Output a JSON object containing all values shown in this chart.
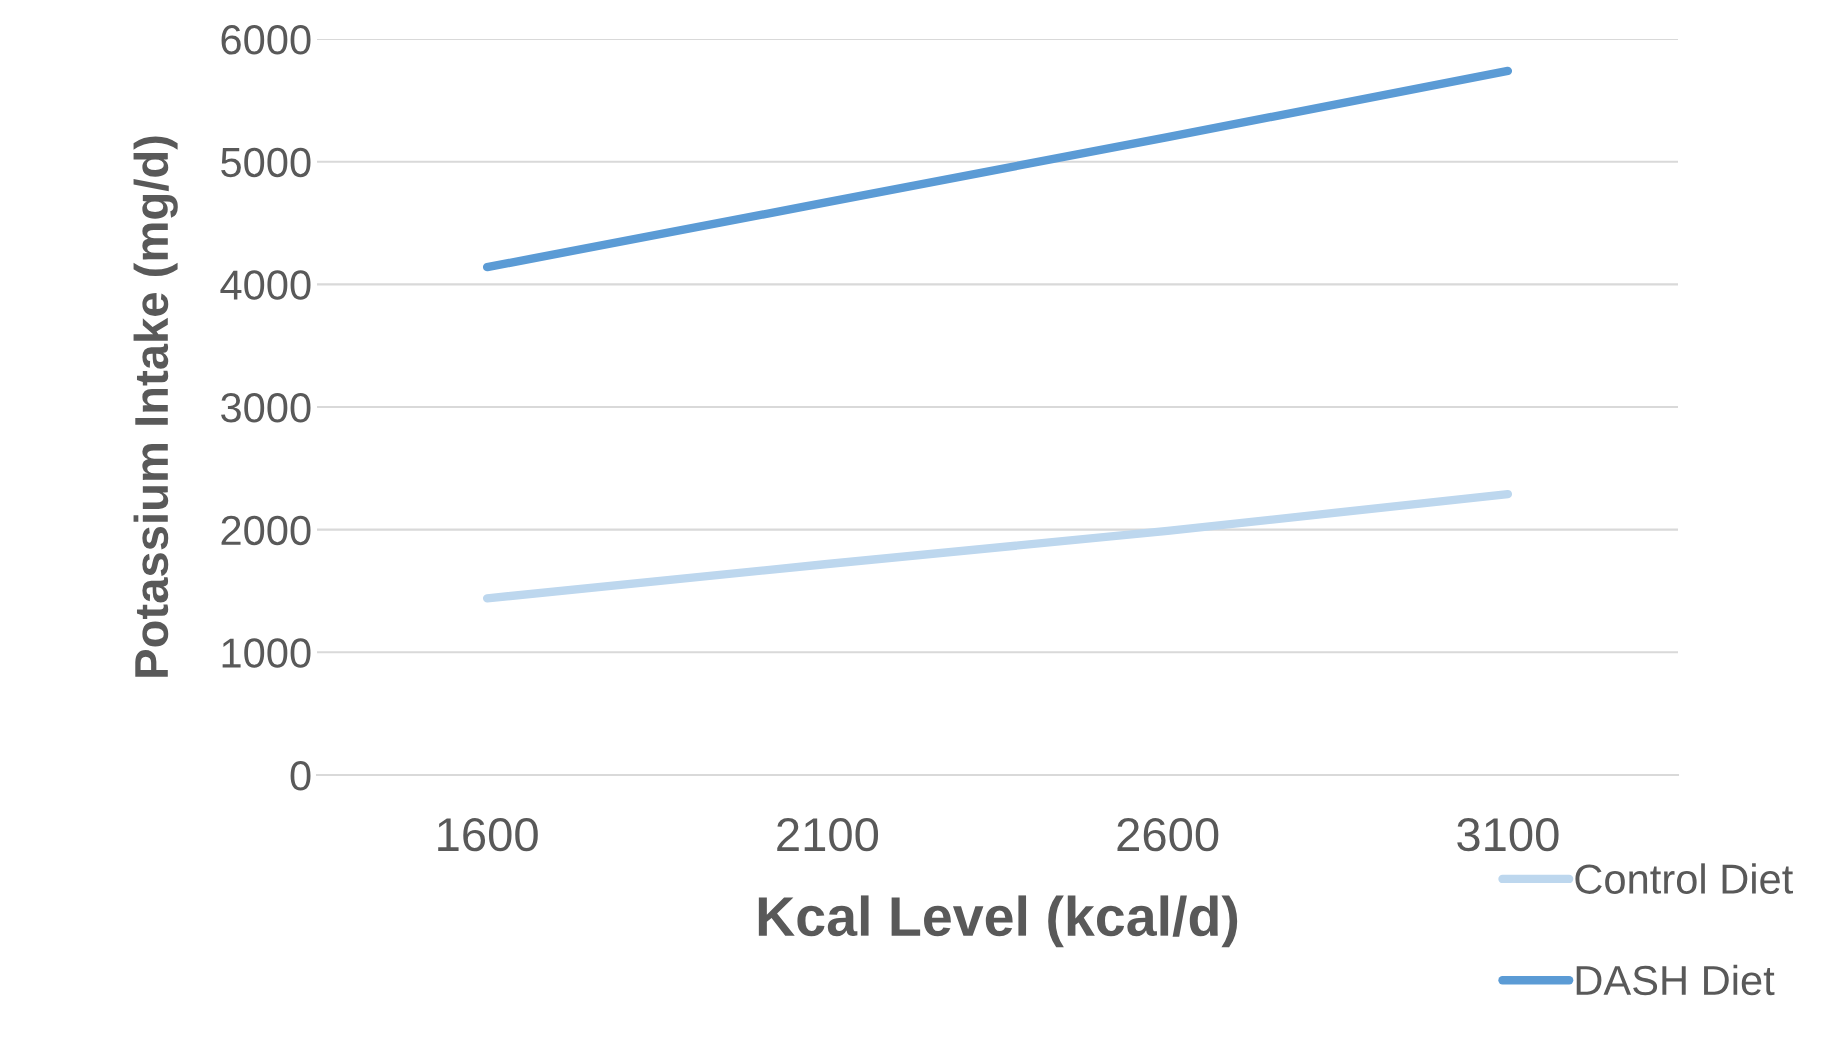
{
  "chart_data": {
    "type": "line",
    "xlabel": "Kcal Level (kcal/d)",
    "ylabel": "Potassium Intake (mg/d)",
    "categories": [
      "1600",
      "2100",
      "2600",
      "3100"
    ],
    "series": [
      {
        "name": "Control Diet",
        "color": "#bdd7ee",
        "values": [
          1440,
          1720,
          1990,
          2290
        ]
      },
      {
        "name": "DASH Diet",
        "color": "#5b9bd5",
        "values": [
          4140,
          4670,
          5200,
          5740
        ]
      }
    ],
    "ylim": [
      0,
      6000
    ],
    "yticks": [
      0,
      1000,
      2000,
      3000,
      4000,
      5000,
      6000
    ],
    "grid": "y",
    "legend": "bottom right",
    "marker": "none",
    "line_style": "solid"
  }
}
